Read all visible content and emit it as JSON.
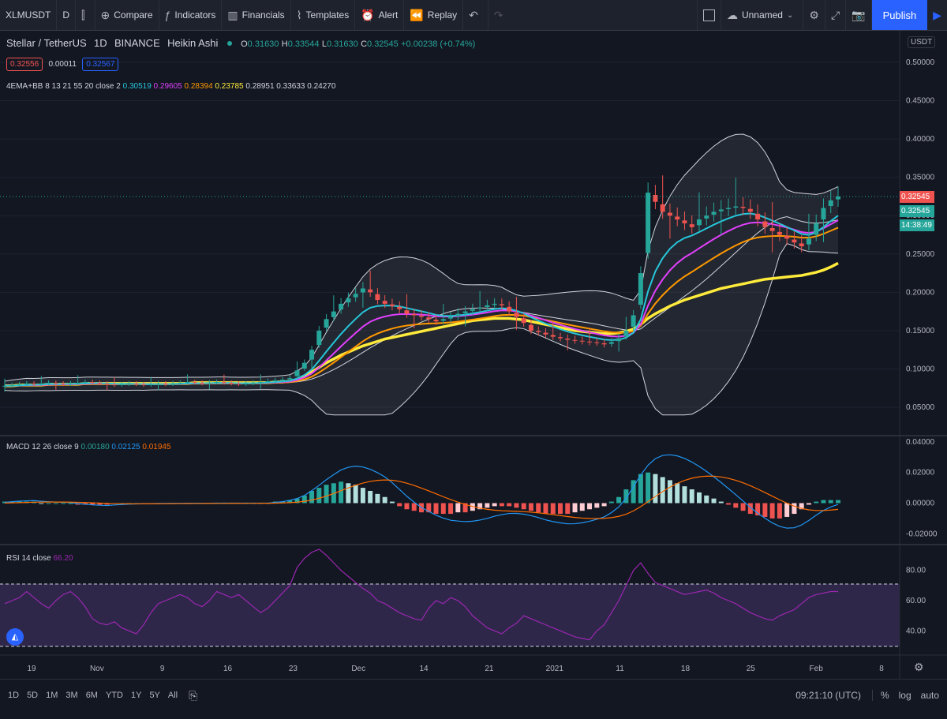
{
  "toolbar": {
    "symbol": "XLMUSDT",
    "interval": "D",
    "compare": "Compare",
    "indicators": "Indicators",
    "financials": "Financials",
    "templates": "Templates",
    "alert": "Alert",
    "replay": "Replay",
    "layout_name": "Unnamed",
    "publish": "Publish"
  },
  "legend": {
    "title": "Stellar / TetherUS",
    "interval": "1D",
    "exchange": "BINANCE",
    "chart_style": "Heikin Ashi",
    "open_label": "O",
    "open": "0.31630",
    "high_label": "H",
    "high": "0.33544",
    "low_label": "L",
    "low": "0.31630",
    "close_label": "C",
    "close": "0.32545",
    "change": "+0.00238 (+0.74%)",
    "sell": "0.32556",
    "spread": "0.00011",
    "buy": "0.32567",
    "ema_label": "4EMA+BB 8 13 21 55 20 close 2",
    "ema_values": [
      "0.30519",
      "0.29605",
      "0.28394",
      "0.23785",
      "0.28951",
      "0.33633",
      "0.24270"
    ],
    "ema_colors": [
      "#26c6da",
      "#e040fb",
      "#ff9800",
      "#ffeb3b",
      "#d1d4dc",
      "#d1d4dc",
      "#d1d4dc"
    ],
    "macd_label": "MACD 12 26 close 9",
    "macd_values": [
      "0.00180",
      "0.02125",
      "0.01945"
    ],
    "macd_colors": [
      "#26a69a",
      "#2196f3",
      "#ff6d00"
    ],
    "rsi_label": "RSI 14 close",
    "rsi_value": "66.20"
  },
  "price_scale": {
    "currency": "USDT",
    "ticks": [
      "0.50000",
      "0.45000",
      "0.40000",
      "0.35000",
      "0.30000",
      "0.25000",
      "0.20000",
      "0.15000",
      "0.10000",
      "0.05000"
    ],
    "last_price": "0.32545",
    "last_price2": "0.32545",
    "countdown": "14:38:49"
  },
  "macd_scale": {
    "ticks": [
      "0.04000",
      "0.02000",
      "0.00000",
      "-0.02000"
    ]
  },
  "rsi_scale": {
    "ticks": [
      "80.00",
      "60.00",
      "40.00"
    ]
  },
  "time_axis": {
    "labels": [
      "19",
      "Nov",
      "9",
      "16",
      "23",
      "Dec",
      "14",
      "21",
      "2021",
      "11",
      "18",
      "25",
      "Feb",
      "8"
    ]
  },
  "bottom_bar": {
    "ranges": [
      "1D",
      "5D",
      "1M",
      "3M",
      "6M",
      "YTD",
      "1Y",
      "5Y",
      "All"
    ],
    "time": "09:21:10 (UTC)",
    "percent": "%",
    "log": "log",
    "auto": "auto"
  },
  "colors": {
    "up": "#26a69a",
    "down": "#ef5350",
    "ema8": "#26c6da",
    "ema13": "#e040fb",
    "ema21": "#ff9800",
    "ema55": "#ffeb3b",
    "bb": "#d1d4dc",
    "rsi": "#9c27b0",
    "accent": "#2962ff"
  },
  "chart_data": {
    "type": "candlestick",
    "closes": [
      0.078,
      0.079,
      0.08,
      0.081,
      0.08,
      0.081,
      0.082,
      0.081,
      0.08,
      0.081,
      0.082,
      0.083,
      0.082,
      0.081,
      0.08,
      0.079,
      0.08,
      0.081,
      0.08,
      0.079,
      0.08,
      0.081,
      0.08,
      0.081,
      0.082,
      0.083,
      0.082,
      0.081,
      0.082,
      0.083,
      0.082,
      0.081,
      0.08,
      0.081,
      0.082,
      0.083,
      0.084,
      0.085,
      0.086,
      0.088,
      0.098,
      0.108,
      0.125,
      0.15,
      0.165,
      0.175,
      0.185,
      0.192,
      0.198,
      0.205,
      0.2,
      0.19,
      0.185,
      0.182,
      0.178,
      0.172,
      0.17,
      0.168,
      0.165,
      0.162,
      0.165,
      0.168,
      0.172,
      0.175,
      0.178,
      0.18,
      0.183,
      0.185,
      0.183,
      0.175,
      0.168,
      0.16,
      0.15,
      0.148,
      0.145,
      0.142,
      0.14,
      0.138,
      0.137,
      0.136,
      0.135,
      0.134,
      0.132,
      0.135,
      0.14,
      0.15,
      0.17,
      0.225,
      0.33,
      0.318,
      0.305,
      0.3,
      0.295,
      0.29,
      0.285,
      0.295,
      0.3,
      0.305,
      0.308,
      0.31,
      0.312,
      0.31,
      0.305,
      0.295,
      0.285,
      0.28,
      0.275,
      0.27,
      0.265,
      0.26,
      0.27,
      0.29,
      0.31,
      0.32,
      0.325
    ],
    "ema55": [
      0.078,
      0.078,
      0.079,
      0.079,
      0.079,
      0.079,
      0.08,
      0.08,
      0.08,
      0.08,
      0.08,
      0.081,
      0.081,
      0.081,
      0.081,
      0.081,
      0.081,
      0.081,
      0.081,
      0.081,
      0.081,
      0.081,
      0.081,
      0.081,
      0.081,
      0.081,
      0.082,
      0.082,
      0.082,
      0.082,
      0.082,
      0.082,
      0.082,
      0.082,
      0.082,
      0.082,
      0.082,
      0.083,
      0.083,
      0.084,
      0.086,
      0.09,
      0.096,
      0.102,
      0.108,
      0.113,
      0.118,
      0.122,
      0.126,
      0.13,
      0.133,
      0.136,
      0.139,
      0.141,
      0.143,
      0.145,
      0.147,
      0.149,
      0.151,
      0.153,
      0.155,
      0.157,
      0.159,
      0.161,
      0.163,
      0.164,
      0.165,
      0.166,
      0.166,
      0.166,
      0.165,
      0.164,
      0.162,
      0.16,
      0.158,
      0.156,
      0.154,
      0.152,
      0.15,
      0.149,
      0.148,
      0.147,
      0.146,
      0.146,
      0.147,
      0.149,
      0.152,
      0.158,
      0.166,
      0.172,
      0.177,
      0.182,
      0.186,
      0.19,
      0.193,
      0.196,
      0.199,
      0.202,
      0.205,
      0.207,
      0.209,
      0.211,
      0.213,
      0.215,
      0.217,
      0.218,
      0.219,
      0.22,
      0.221,
      0.222,
      0.224,
      0.226,
      0.229,
      0.233,
      0.238
    ],
    "macd_hist": [
      0.001,
      0.001,
      0.001,
      0.001,
      0.001,
      0,
      0,
      0,
      0,
      0,
      -0.001,
      -0.001,
      -0.001,
      -0.001,
      -0.001,
      0,
      0,
      0,
      0,
      0,
      0,
      0,
      0,
      0,
      0,
      0,
      0,
      0,
      0,
      0,
      0,
      0,
      0,
      0,
      0,
      0,
      0,
      0.001,
      0.001,
      0.002,
      0.003,
      0.005,
      0.008,
      0.01,
      0.012,
      0.013,
      0.014,
      0.013,
      0.012,
      0.01,
      0.008,
      0.006,
      0.004,
      0.001,
      -0.002,
      -0.004,
      -0.005,
      -0.006,
      -0.006,
      -0.007,
      -0.007,
      -0.007,
      -0.006,
      -0.006,
      -0.005,
      -0.004,
      -0.003,
      -0.002,
      -0.002,
      -0.002,
      -0.003,
      -0.004,
      -0.005,
      -0.006,
      -0.007,
      -0.007,
      -0.007,
      -0.007,
      -0.006,
      -0.005,
      -0.004,
      -0.003,
      -0.002,
      0.001,
      0.004,
      0.009,
      0.015,
      0.019,
      0.02,
      0.019,
      0.017,
      0.015,
      0.013,
      0.011,
      0.009,
      0.007,
      0.005,
      0.003,
      0.001,
      -0.001,
      -0.003,
      -0.005,
      -0.007,
      -0.008,
      -0.009,
      -0.01,
      -0.01,
      -0.009,
      -0.007,
      -0.004,
      -0.001,
      0.001,
      0.002,
      0.002,
      0.002
    ],
    "rsi": [
      58,
      60,
      62,
      66,
      62,
      58,
      55,
      60,
      64,
      66,
      62,
      56,
      48,
      45,
      44,
      46,
      42,
      40,
      38,
      44,
      52,
      58,
      60,
      62,
      64,
      62,
      58,
      56,
      60,
      66,
      64,
      62,
      64,
      60,
      56,
      52,
      55,
      60,
      65,
      70,
      82,
      88,
      92,
      95,
      90,
      85,
      80,
      76,
      72,
      68,
      65,
      60,
      58,
      55,
      52,
      50,
      48,
      47,
      55,
      60,
      58,
      62,
      60,
      56,
      50,
      46,
      42,
      40,
      38,
      42,
      45,
      50,
      48,
      46,
      44,
      42,
      40,
      38,
      36,
      35,
      34,
      40,
      44,
      52,
      60,
      70,
      80,
      85,
      78,
      72,
      70,
      68,
      66,
      64,
      65,
      66,
      67,
      65,
      62,
      60,
      58,
      55,
      52,
      50,
      48,
      47,
      50,
      52,
      54,
      58,
      62,
      64,
      65,
      66,
      66
    ]
  }
}
